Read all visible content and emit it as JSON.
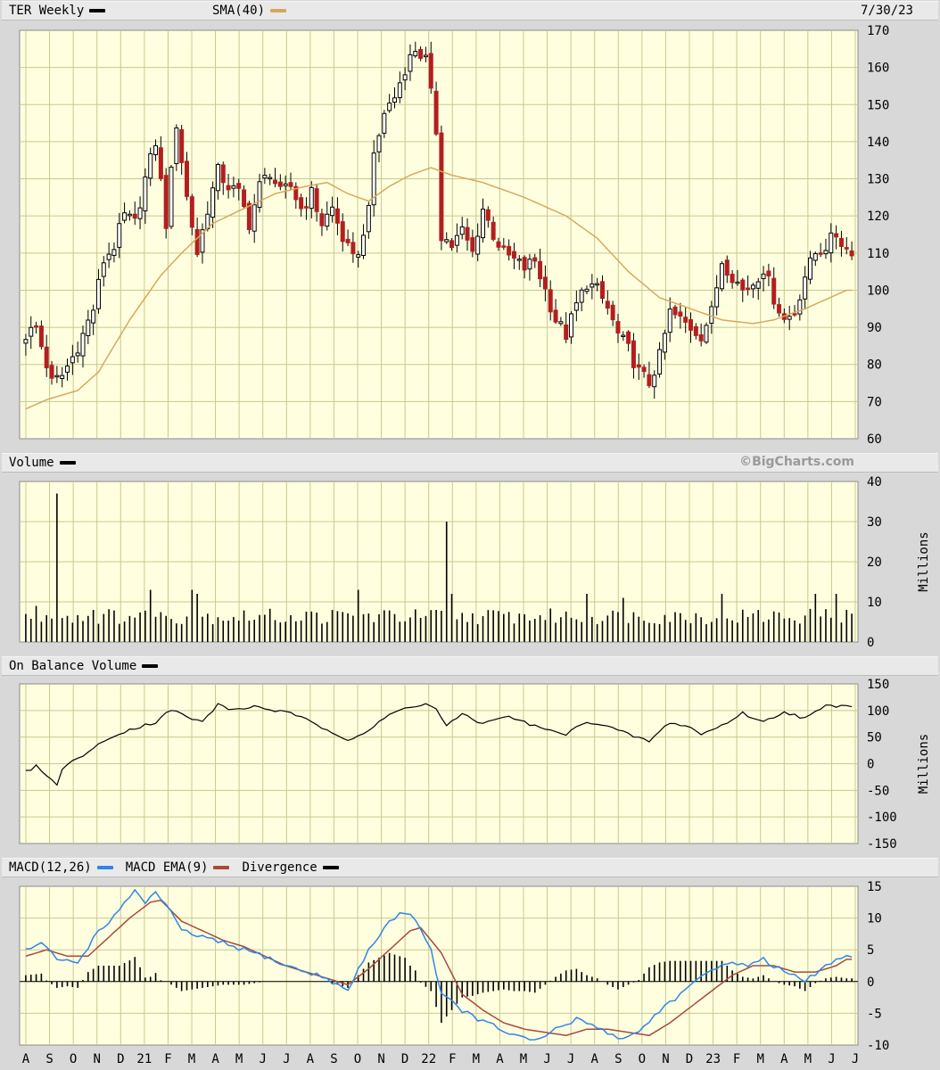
{
  "header": {
    "ticker_label": "TER Weekly",
    "sma_label": "SMA(40)",
    "date": "7/30/23",
    "volume_label": "Volume",
    "watermark": "©BigCharts.com",
    "obv_label": "On Balance Volume",
    "macd_label": "MACD(12,26)",
    "macd_ema_label": "MACD EMA(9)",
    "divergence_label": "Divergence"
  },
  "colors": {
    "up": "#ffffff",
    "down": "#b41e1e",
    "sma": "#d7a85a",
    "macd": "#2e86e8",
    "macd_ema": "#a84a3a",
    "plot_bg": "#ffffe0",
    "grid": "#c8c88e"
  },
  "chart_data": [
    {
      "type": "candlestick",
      "name": "price",
      "ylim": [
        60,
        170
      ],
      "yticks": [
        "170",
        "160",
        "150",
        "140",
        "130",
        "120",
        "110",
        "100",
        "90",
        "80",
        "70",
        "60"
      ],
      "x_ticks": [
        "A",
        "S",
        "O",
        "N",
        "D",
        "21",
        "F",
        "M",
        "A",
        "M",
        "J",
        "J",
        "A",
        "S",
        "O",
        "N",
        "D",
        "22",
        "F",
        "M",
        "A",
        "M",
        "J",
        "J",
        "A",
        "S",
        "O",
        "N",
        "D",
        "23",
        "F",
        "M",
        "A",
        "M",
        "J",
        "J"
      ],
      "anchors": [
        [
          0,
          88
        ],
        [
          2,
          90
        ],
        [
          4,
          80
        ],
        [
          5,
          75
        ],
        [
          7,
          77
        ],
        [
          9,
          82
        ],
        [
          11,
          88
        ],
        [
          13,
          95
        ],
        [
          15,
          108
        ],
        [
          17,
          112
        ],
        [
          19,
          120
        ],
        [
          21,
          118
        ],
        [
          23,
          130
        ],
        [
          25,
          140
        ],
        [
          27,
          118
        ],
        [
          29,
          145
        ],
        [
          31,
          125
        ],
        [
          33,
          110
        ],
        [
          35,
          122
        ],
        [
          37,
          132
        ],
        [
          39,
          128
        ],
        [
          41,
          126
        ],
        [
          43,
          118
        ],
        [
          45,
          128
        ],
        [
          47,
          132
        ],
        [
          49,
          126
        ],
        [
          51,
          128
        ],
        [
          53,
          122
        ],
        [
          55,
          126
        ],
        [
          57,
          118
        ],
        [
          59,
          122
        ],
        [
          61,
          114
        ],
        [
          63,
          108
        ],
        [
          65,
          114
        ],
        [
          67,
          135
        ],
        [
          69,
          148
        ],
        [
          71,
          152
        ],
        [
          73,
          160
        ],
        [
          75,
          165
        ],
        [
          77,
          162
        ],
        [
          79,
          143
        ],
        [
          80,
          115
        ],
        [
          82,
          112
        ],
        [
          84,
          116
        ],
        [
          86,
          110
        ],
        [
          88,
          122
        ],
        [
          90,
          115
        ],
        [
          92,
          110
        ],
        [
          94,
          108
        ],
        [
          96,
          106
        ],
        [
          98,
          108
        ],
        [
          100,
          100
        ],
        [
          102,
          92
        ],
        [
          104,
          88
        ],
        [
          106,
          96
        ],
        [
          108,
          102
        ],
        [
          110,
          100
        ],
        [
          112,
          95
        ],
        [
          114,
          88
        ],
        [
          116,
          84
        ],
        [
          118,
          78
        ],
        [
          120,
          75
        ],
        [
          122,
          82
        ],
        [
          124,
          94
        ],
        [
          126,
          92
        ],
        [
          128,
          90
        ],
        [
          130,
          88
        ],
        [
          132,
          94
        ],
        [
          134,
          108
        ],
        [
          136,
          104
        ],
        [
          138,
          100
        ],
        [
          140,
          102
        ],
        [
          142,
          106
        ],
        [
          144,
          98
        ],
        [
          146,
          92
        ],
        [
          148,
          94
        ],
        [
          150,
          104
        ],
        [
          152,
          110
        ],
        [
          154,
          112
        ],
        [
          156,
          115
        ],
        [
          158,
          111
        ]
      ],
      "sma_anchors": [
        [
          0,
          68
        ],
        [
          4,
          70.5
        ],
        [
          10,
          73
        ],
        [
          14,
          78
        ],
        [
          20,
          92
        ],
        [
          26,
          104
        ],
        [
          30,
          110
        ],
        [
          36,
          118
        ],
        [
          42,
          122
        ],
        [
          48,
          126
        ],
        [
          54,
          128
        ],
        [
          58,
          129
        ],
        [
          62,
          126
        ],
        [
          66,
          124
        ],
        [
          70,
          128
        ],
        [
          74,
          131
        ],
        [
          78,
          133
        ],
        [
          82,
          131
        ],
        [
          88,
          129
        ],
        [
          96,
          125
        ],
        [
          104,
          120
        ],
        [
          110,
          114
        ],
        [
          116,
          105
        ],
        [
          122,
          98
        ],
        [
          128,
          95
        ],
        [
          134,
          92
        ],
        [
          140,
          91
        ],
        [
          144,
          92
        ],
        [
          150,
          95
        ],
        [
          158,
          100
        ]
      ]
    },
    {
      "type": "bar",
      "name": "volume",
      "ylabel": "Millions",
      "ylim": [
        0,
        40
      ],
      "yticks": [
        "40",
        "30",
        "20",
        "10",
        "0"
      ],
      "typical": 6,
      "spikes": [
        [
          6,
          37
        ],
        [
          81,
          30
        ],
        [
          2,
          9
        ],
        [
          13,
          8
        ],
        [
          24,
          13
        ],
        [
          32,
          13
        ],
        [
          33,
          12
        ],
        [
          64,
          13
        ],
        [
          82,
          12
        ],
        [
          108,
          12
        ],
        [
          115,
          11
        ],
        [
          134,
          12
        ],
        [
          152,
          12
        ],
        [
          156,
          12
        ]
      ]
    },
    {
      "type": "line",
      "name": "on_balance_volume",
      "ylabel": "Millions",
      "ylim": [
        -150,
        150
      ],
      "yticks": [
        "150",
        "100",
        "50",
        "0",
        "-50",
        "-100",
        "-150"
      ],
      "values_anchors": [
        [
          0,
          -15
        ],
        [
          2,
          -5
        ],
        [
          4,
          -20
        ],
        [
          6,
          -42
        ],
        [
          7,
          -8
        ],
        [
          10,
          10
        ],
        [
          14,
          35
        ],
        [
          18,
          58
        ],
        [
          22,
          70
        ],
        [
          25,
          78
        ],
        [
          28,
          102
        ],
        [
          31,
          88
        ],
        [
          34,
          78
        ],
        [
          37,
          112
        ],
        [
          40,
          100
        ],
        [
          44,
          108
        ],
        [
          48,
          100
        ],
        [
          52,
          92
        ],
        [
          56,
          72
        ],
        [
          60,
          56
        ],
        [
          62,
          45
        ],
        [
          66,
          62
        ],
        [
          70,
          92
        ],
        [
          74,
          108
        ],
        [
          77,
          112
        ],
        [
          79,
          102
        ],
        [
          81,
          72
        ],
        [
          84,
          92
        ],
        [
          88,
          75
        ],
        [
          92,
          90
        ],
        [
          96,
          78
        ],
        [
          100,
          64
        ],
        [
          104,
          55
        ],
        [
          108,
          80
        ],
        [
          112,
          70
        ],
        [
          116,
          55
        ],
        [
          120,
          42
        ],
        [
          124,
          78
        ],
        [
          128,
          68
        ],
        [
          130,
          55
        ],
        [
          134,
          72
        ],
        [
          138,
          95
        ],
        [
          142,
          78
        ],
        [
          146,
          98
        ],
        [
          150,
          85
        ],
        [
          154,
          108
        ],
        [
          158,
          110
        ]
      ]
    },
    {
      "type": "line",
      "name": "macd",
      "ylim": [
        -10,
        15
      ],
      "yticks": [
        "15",
        "10",
        "5",
        "0",
        "-5",
        "-10"
      ],
      "macd_anchors": [
        [
          0,
          5
        ],
        [
          3,
          6
        ],
        [
          6,
          3.5
        ],
        [
          10,
          3
        ],
        [
          14,
          8
        ],
        [
          18,
          11
        ],
        [
          21,
          14.5
        ],
        [
          23,
          12.5
        ],
        [
          25,
          14
        ],
        [
          27,
          12
        ],
        [
          30,
          8
        ],
        [
          34,
          7
        ],
        [
          38,
          6
        ],
        [
          42,
          5
        ],
        [
          46,
          4
        ],
        [
          50,
          2.5
        ],
        [
          54,
          1.5
        ],
        [
          58,
          0.5
        ],
        [
          62,
          -1.5
        ],
        [
          66,
          5
        ],
        [
          70,
          9.5
        ],
        [
          73,
          11
        ],
        [
          75,
          10
        ],
        [
          78,
          5
        ],
        [
          80,
          -2
        ],
        [
          84,
          -4.5
        ],
        [
          86,
          -5.5
        ],
        [
          90,
          -7
        ],
        [
          94,
          -8.5
        ],
        [
          98,
          -9.5
        ],
        [
          102,
          -7.5
        ],
        [
          106,
          -6
        ],
        [
          110,
          -7
        ],
        [
          114,
          -9
        ],
        [
          118,
          -8
        ],
        [
          122,
          -4.5
        ],
        [
          126,
          -2
        ],
        [
          130,
          0.5
        ],
        [
          134,
          3
        ],
        [
          138,
          2.5
        ],
        [
          142,
          3.5
        ],
        [
          146,
          1.5
        ],
        [
          150,
          0
        ],
        [
          154,
          2.5
        ],
        [
          158,
          4
        ]
      ],
      "ema_anchors": [
        [
          0,
          4
        ],
        [
          4,
          5
        ],
        [
          8,
          4
        ],
        [
          12,
          4
        ],
        [
          16,
          7
        ],
        [
          20,
          10
        ],
        [
          24,
          12.5
        ],
        [
          26,
          12.8
        ],
        [
          30,
          9.5
        ],
        [
          34,
          8
        ],
        [
          38,
          6.5
        ],
        [
          42,
          5.5
        ],
        [
          46,
          4
        ],
        [
          50,
          2.5
        ],
        [
          54,
          1.5
        ],
        [
          58,
          0.5
        ],
        [
          62,
          -0.5
        ],
        [
          66,
          2
        ],
        [
          70,
          5
        ],
        [
          74,
          8
        ],
        [
          76,
          8.5
        ],
        [
          80,
          4.5
        ],
        [
          84,
          -2
        ],
        [
          88,
          -4.5
        ],
        [
          92,
          -6.5
        ],
        [
          96,
          -7.5
        ],
        [
          100,
          -8
        ],
        [
          104,
          -8.5
        ],
        [
          108,
          -7.5
        ],
        [
          112,
          -7.5
        ],
        [
          116,
          -8
        ],
        [
          120,
          -8.5
        ],
        [
          124,
          -6.5
        ],
        [
          128,
          -4
        ],
        [
          132,
          -1.5
        ],
        [
          136,
          1
        ],
        [
          140,
          2.5
        ],
        [
          144,
          2.5
        ],
        [
          148,
          1.5
        ],
        [
          152,
          1.5
        ],
        [
          156,
          2.5
        ],
        [
          158,
          3.5
        ]
      ]
    }
  ]
}
